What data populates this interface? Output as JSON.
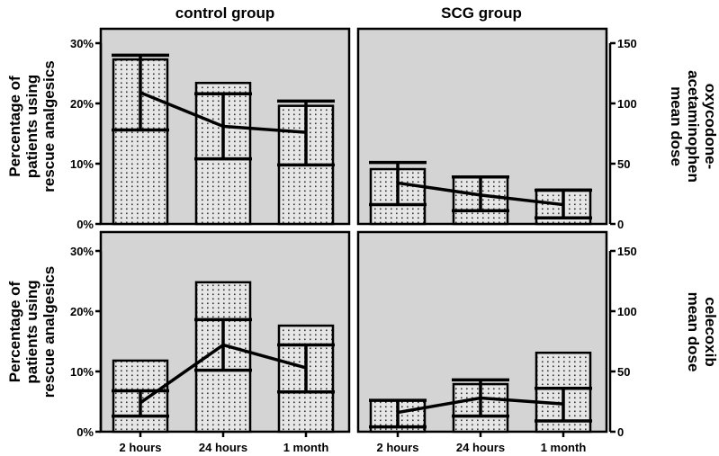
{
  "chart_data": {
    "type": "bar",
    "layout": "2x2 panel grid (bars = percentage of patients, line with error bars = mean dose)",
    "columns": [
      "control group",
      "SCG group"
    ],
    "rows": [
      {
        "left_label": [
          "Percentage of",
          "patients using",
          "rescue analgesics"
        ],
        "right_label": [
          "oxycodone-",
          "acetaminophen",
          "mean dose"
        ]
      },
      {
        "left_label": [
          "Percentage of",
          "patients using",
          "rescue analgesics"
        ],
        "right_label": [
          "celecoxib",
          "mean dose"
        ]
      }
    ],
    "categories": [
      "2 hours",
      "24 hours",
      "1 month"
    ],
    "left_axis": {
      "ticks": [
        "0%",
        "10%",
        "20%",
        "30%"
      ],
      "ylim": [
        0,
        30
      ]
    },
    "right_axis": {
      "ticks": [
        "0",
        "50",
        "100",
        "150"
      ],
      "ylim": [
        0,
        150
      ]
    },
    "panels": [
      {
        "row": 0,
        "col": 0,
        "percentage": [
          27.3,
          23.4,
          19.6
        ],
        "mean_dose": [
          109,
          81,
          76
        ],
        "dose_lower": [
          78,
          54,
          49
        ],
        "dose_upper": [
          140,
          108,
          102
        ]
      },
      {
        "row": 0,
        "col": 1,
        "percentage": [
          9.1,
          7.8,
          5.7
        ],
        "mean_dose": [
          34,
          24,
          16
        ],
        "dose_lower": [
          16,
          11,
          5
        ],
        "dose_upper": [
          51,
          39,
          28
        ]
      },
      {
        "row": 1,
        "col": 0,
        "percentage": [
          11.8,
          24.8,
          17.6
        ],
        "mean_dose": [
          24,
          72,
          53
        ],
        "dose_lower": [
          13,
          51,
          33
        ],
        "dose_upper": [
          34,
          93,
          72
        ]
      },
      {
        "row": 1,
        "col": 1,
        "percentage": [
          5.2,
          7.9,
          13.1
        ],
        "mean_dose": [
          16,
          28,
          23
        ],
        "dose_lower": [
          4,
          13,
          9
        ],
        "dose_upper": [
          26,
          43,
          36
        ]
      }
    ],
    "grid": false,
    "colors": {
      "panel_bg": "#d4d4d4",
      "bar_fill": "#e6e6e6",
      "ink": "#000000"
    }
  }
}
